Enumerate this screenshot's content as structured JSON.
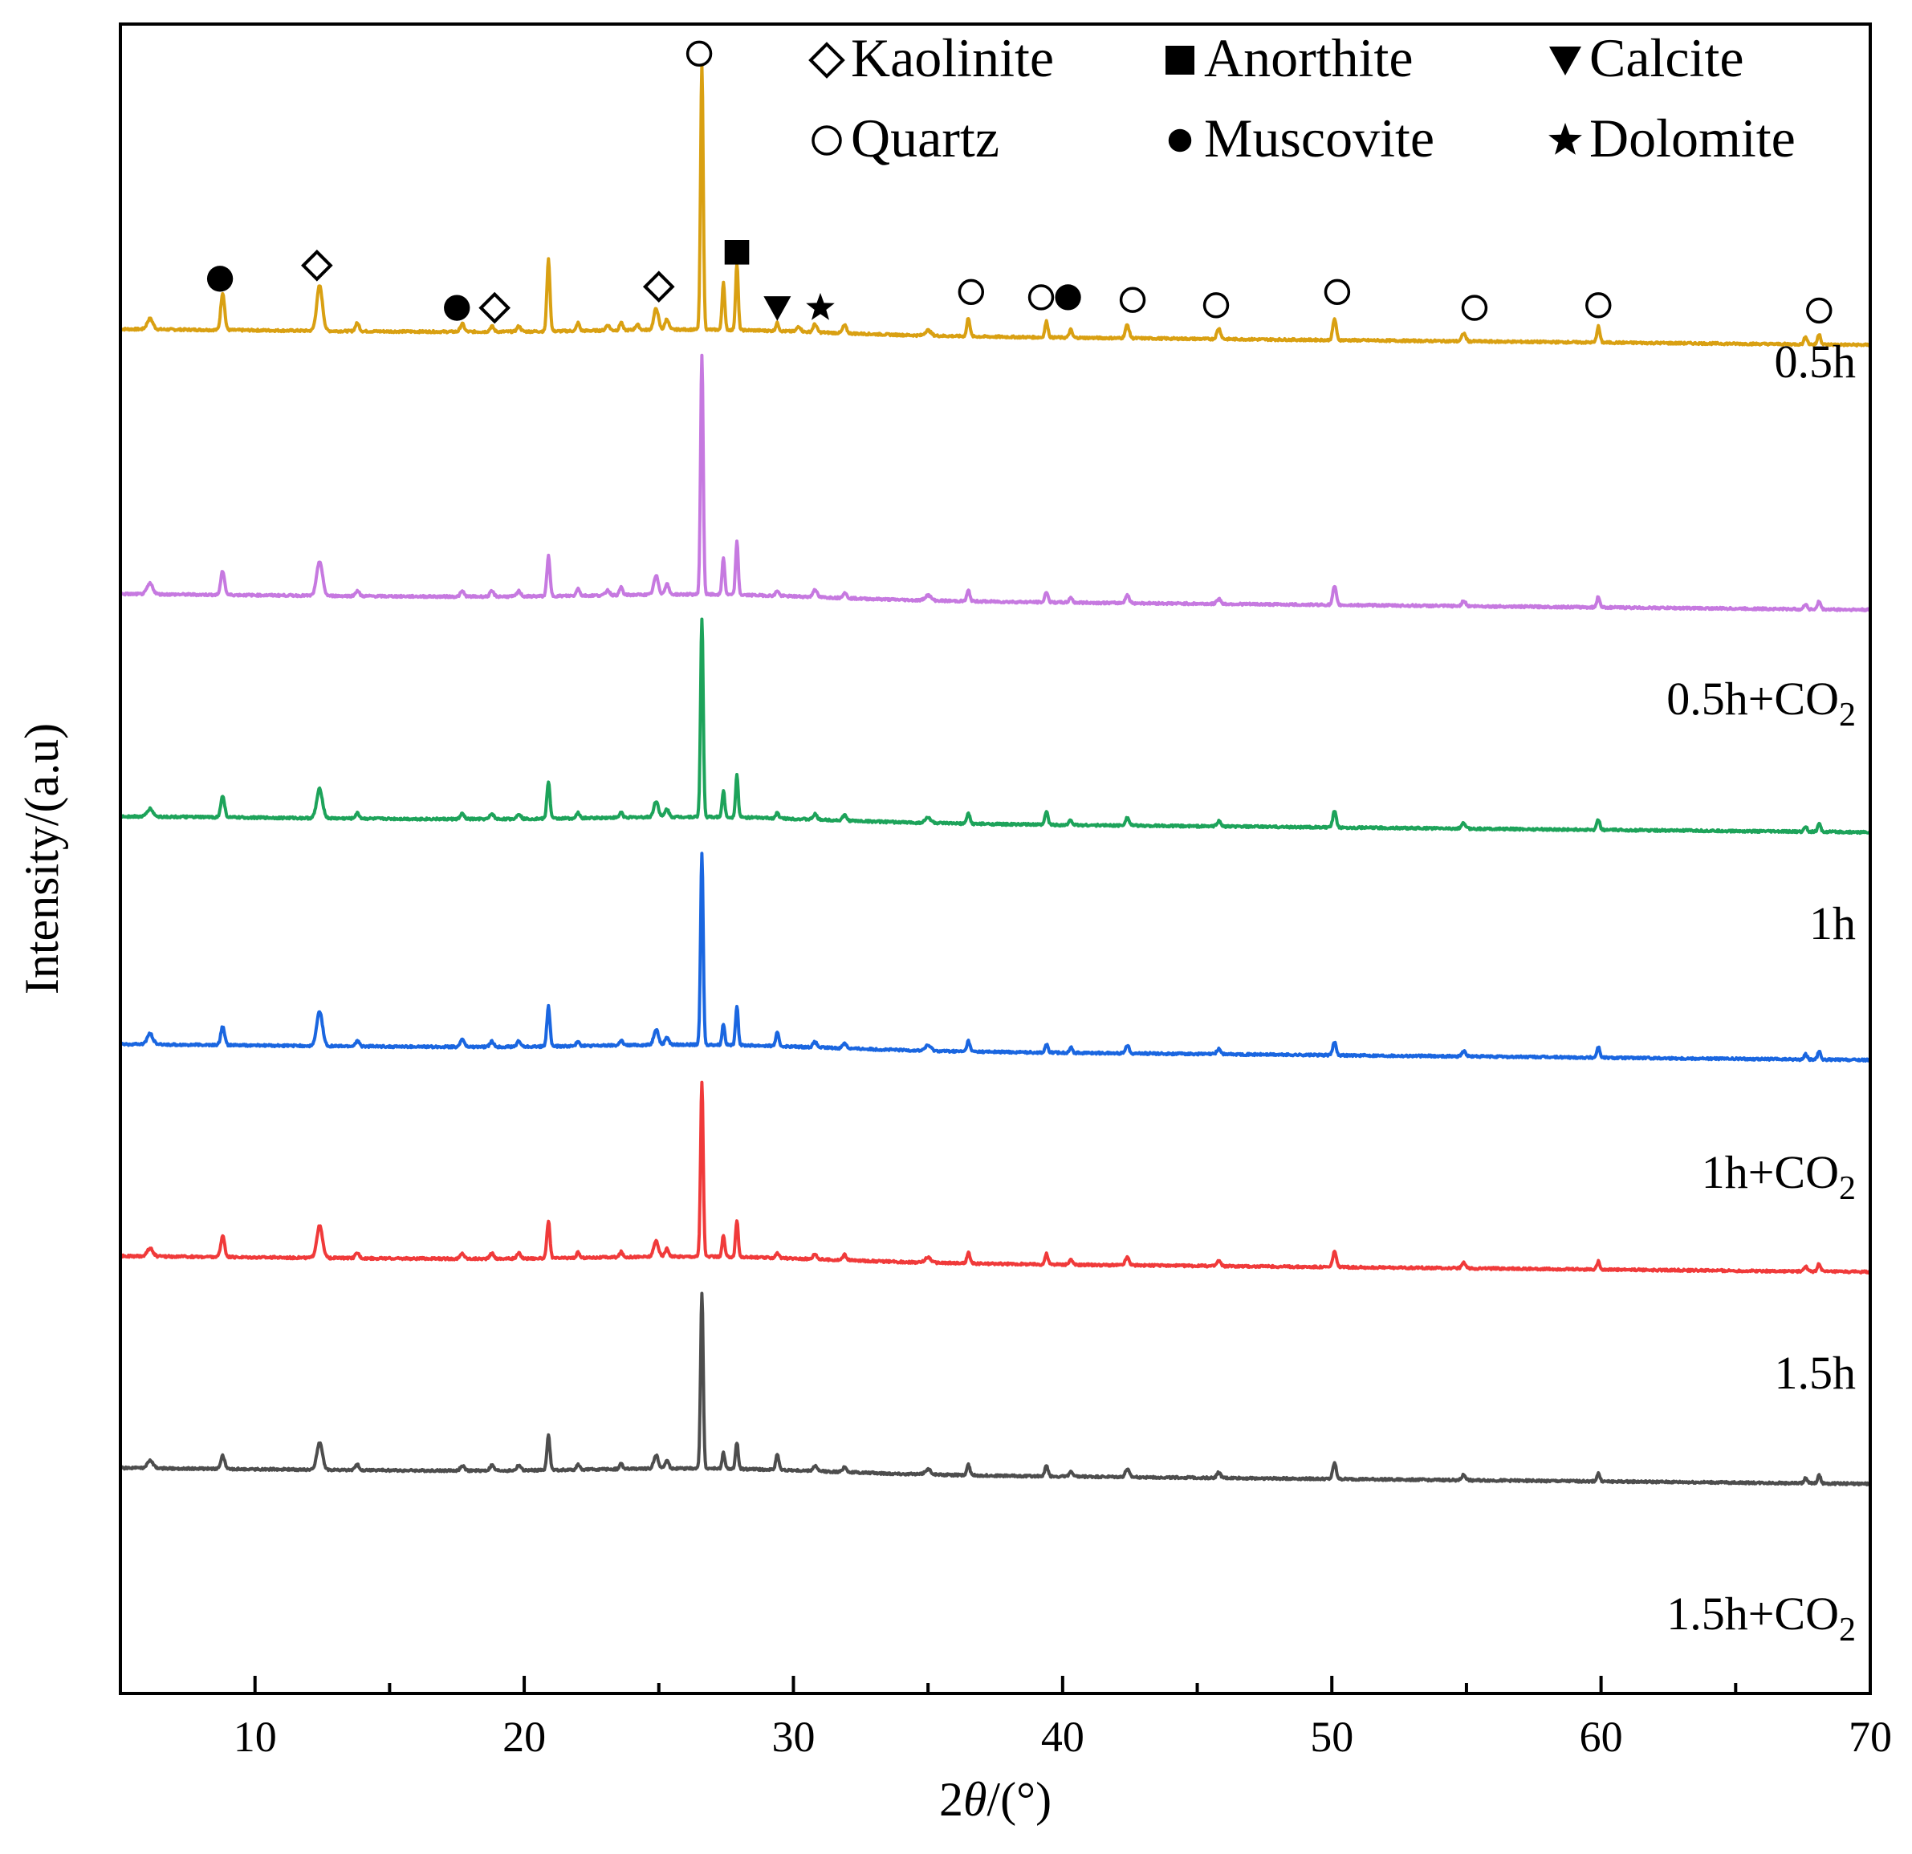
{
  "chart_data": {
    "type": "line",
    "title": "",
    "xlabel_prefix": "2",
    "xlabel_theta": "θ",
    "xlabel_suffix": "/(°)",
    "ylabel": "Intensity/(a.u)",
    "xlim": [
      5,
      70
    ],
    "xticks": [
      10,
      20,
      30,
      40,
      50,
      60,
      70
    ],
    "grid": false,
    "legend_position": "top-right",
    "legend": [
      {
        "symbol": "diamond-open",
        "name": "Kaolinite"
      },
      {
        "symbol": "square-filled",
        "name": "Anorthite"
      },
      {
        "symbol": "triangle-down-filled",
        "name": "Calcite"
      },
      {
        "symbol": "circle-open",
        "name": "Quartz"
      },
      {
        "symbol": "circle-filled",
        "name": "Muscovite"
      },
      {
        "symbol": "star-filled",
        "name": "Dolomite"
      }
    ],
    "series": [
      {
        "name": "0.5h",
        "label_main": "0.5h",
        "label_sub": "",
        "color": "#D9A012",
        "baseline_left": 0.0,
        "baseline_right": -0.06,
        "scale": 1.0,
        "peaks": [
          [
            6.1,
            0.04,
            0.15
          ],
          [
            8.8,
            0.14,
            0.1
          ],
          [
            12.4,
            0.17,
            0.15
          ],
          [
            13.8,
            0.03,
            0.1
          ],
          [
            17.7,
            0.03,
            0.1
          ],
          [
            18.8,
            0.02,
            0.1
          ],
          [
            19.8,
            0.02,
            0.1
          ],
          [
            20.9,
            0.27,
            0.08
          ],
          [
            22.0,
            0.03,
            0.08
          ],
          [
            23.1,
            0.02,
            0.1
          ],
          [
            23.6,
            0.03,
            0.08
          ],
          [
            24.2,
            0.02,
            0.1
          ],
          [
            24.9,
            0.08,
            0.12
          ],
          [
            25.3,
            0.04,
            0.1
          ],
          [
            26.6,
            1.0,
            0.07
          ],
          [
            27.4,
            0.18,
            0.07
          ],
          [
            27.9,
            0.25,
            0.07
          ],
          [
            29.4,
            0.03,
            0.08
          ],
          [
            30.2,
            0.02,
            0.1
          ],
          [
            30.8,
            0.03,
            0.1
          ],
          [
            31.9,
            0.03,
            0.1
          ],
          [
            35.0,
            0.02,
            0.15
          ],
          [
            36.5,
            0.07,
            0.08
          ],
          [
            39.4,
            0.06,
            0.08
          ],
          [
            40.3,
            0.03,
            0.08
          ],
          [
            42.4,
            0.05,
            0.1
          ],
          [
            45.8,
            0.04,
            0.1
          ],
          [
            50.1,
            0.08,
            0.09
          ],
          [
            54.9,
            0.03,
            0.1
          ],
          [
            59.9,
            0.06,
            0.08
          ],
          [
            67.6,
            0.03,
            0.08
          ],
          [
            68.1,
            0.04,
            0.08
          ]
        ]
      },
      {
        "name": "0.5h+CO2",
        "label_main": "0.5h+CO",
        "label_sub": "2",
        "color": "#C679E0",
        "baseline_left": -1.0,
        "baseline_right": -1.06,
        "scale": 1.0,
        "peaks": [
          [
            6.1,
            0.04,
            0.15
          ],
          [
            8.8,
            0.09,
            0.1
          ],
          [
            12.4,
            0.13,
            0.15
          ],
          [
            13.8,
            0.02,
            0.1
          ],
          [
            17.7,
            0.02,
            0.1
          ],
          [
            18.8,
            0.02,
            0.1
          ],
          [
            19.8,
            0.02,
            0.1
          ],
          [
            20.9,
            0.15,
            0.08
          ],
          [
            22.0,
            0.03,
            0.08
          ],
          [
            23.1,
            0.02,
            0.1
          ],
          [
            23.6,
            0.03,
            0.08
          ],
          [
            24.9,
            0.07,
            0.12
          ],
          [
            25.3,
            0.04,
            0.1
          ],
          [
            26.6,
            0.9,
            0.07
          ],
          [
            27.4,
            0.14,
            0.07
          ],
          [
            27.9,
            0.2,
            0.07
          ],
          [
            29.4,
            0.02,
            0.08
          ],
          [
            30.8,
            0.03,
            0.1
          ],
          [
            31.9,
            0.02,
            0.1
          ],
          [
            35.0,
            0.02,
            0.15
          ],
          [
            36.5,
            0.04,
            0.08
          ],
          [
            39.4,
            0.04,
            0.08
          ],
          [
            40.3,
            0.02,
            0.08
          ],
          [
            42.4,
            0.03,
            0.1
          ],
          [
            45.8,
            0.02,
            0.1
          ],
          [
            50.1,
            0.07,
            0.09
          ],
          [
            54.9,
            0.02,
            0.1
          ],
          [
            59.9,
            0.04,
            0.08
          ],
          [
            67.6,
            0.02,
            0.08
          ],
          [
            68.1,
            0.03,
            0.08
          ]
        ]
      },
      {
        "name": "1h",
        "label_main": "1h",
        "label_sub": "",
        "color": "#1DA35A",
        "baseline_left": -1.84,
        "baseline_right": -1.9,
        "scale": 1.0,
        "peaks": [
          [
            6.1,
            0.03,
            0.15
          ],
          [
            8.8,
            0.08,
            0.1
          ],
          [
            12.4,
            0.11,
            0.15
          ],
          [
            13.8,
            0.02,
            0.1
          ],
          [
            17.7,
            0.02,
            0.1
          ],
          [
            18.8,
            0.02,
            0.1
          ],
          [
            19.8,
            0.02,
            0.1
          ],
          [
            20.9,
            0.14,
            0.08
          ],
          [
            22.0,
            0.02,
            0.08
          ],
          [
            23.6,
            0.02,
            0.08
          ],
          [
            24.9,
            0.06,
            0.12
          ],
          [
            25.3,
            0.03,
            0.1
          ],
          [
            26.6,
            0.75,
            0.07
          ],
          [
            27.4,
            0.1,
            0.07
          ],
          [
            27.9,
            0.16,
            0.07
          ],
          [
            29.4,
            0.02,
            0.08
          ],
          [
            30.8,
            0.02,
            0.1
          ],
          [
            31.9,
            0.02,
            0.1
          ],
          [
            35.0,
            0.02,
            0.15
          ],
          [
            36.5,
            0.04,
            0.08
          ],
          [
            39.4,
            0.05,
            0.08
          ],
          [
            40.3,
            0.02,
            0.08
          ],
          [
            42.4,
            0.03,
            0.1
          ],
          [
            45.8,
            0.02,
            0.1
          ],
          [
            50.1,
            0.06,
            0.09
          ],
          [
            54.9,
            0.02,
            0.1
          ],
          [
            59.9,
            0.04,
            0.08
          ],
          [
            67.6,
            0.02,
            0.08
          ],
          [
            68.1,
            0.03,
            0.08
          ]
        ]
      },
      {
        "name": "1h+CO2",
        "label_main": "1h+CO",
        "label_sub": "2",
        "color": "#1A66E0",
        "baseline_left": -2.7,
        "baseline_right": -2.76,
        "scale": 1.0,
        "peaks": [
          [
            6.1,
            0.04,
            0.15
          ],
          [
            8.8,
            0.07,
            0.1
          ],
          [
            12.4,
            0.13,
            0.15
          ],
          [
            13.8,
            0.02,
            0.1
          ],
          [
            17.7,
            0.03,
            0.1
          ],
          [
            18.8,
            0.02,
            0.1
          ],
          [
            19.8,
            0.02,
            0.1
          ],
          [
            20.9,
            0.15,
            0.08
          ],
          [
            22.0,
            0.02,
            0.08
          ],
          [
            23.6,
            0.02,
            0.08
          ],
          [
            24.9,
            0.06,
            0.12
          ],
          [
            25.3,
            0.03,
            0.1
          ],
          [
            26.6,
            0.72,
            0.07
          ],
          [
            27.4,
            0.08,
            0.07
          ],
          [
            27.9,
            0.15,
            0.07
          ],
          [
            29.4,
            0.05,
            0.08
          ],
          [
            30.8,
            0.02,
            0.1
          ],
          [
            31.9,
            0.02,
            0.1
          ],
          [
            35.0,
            0.02,
            0.15
          ],
          [
            36.5,
            0.04,
            0.08
          ],
          [
            39.4,
            0.03,
            0.08
          ],
          [
            40.3,
            0.02,
            0.08
          ],
          [
            42.4,
            0.03,
            0.1
          ],
          [
            45.8,
            0.02,
            0.1
          ],
          [
            50.1,
            0.05,
            0.09
          ],
          [
            54.9,
            0.02,
            0.1
          ],
          [
            59.9,
            0.04,
            0.08
          ],
          [
            67.6,
            0.02,
            0.08
          ],
          [
            68.1,
            0.03,
            0.08
          ]
        ]
      },
      {
        "name": "1.5h",
        "label_main": "1.5h",
        "label_sub": "",
        "color": "#F03A3A",
        "baseline_left": -3.5,
        "baseline_right": -3.56,
        "scale": 1.0,
        "peaks": [
          [
            6.1,
            0.03,
            0.15
          ],
          [
            8.8,
            0.08,
            0.1
          ],
          [
            12.4,
            0.12,
            0.15
          ],
          [
            13.8,
            0.02,
            0.1
          ],
          [
            17.7,
            0.02,
            0.1
          ],
          [
            18.8,
            0.02,
            0.1
          ],
          [
            19.8,
            0.02,
            0.1
          ],
          [
            20.9,
            0.14,
            0.08
          ],
          [
            22.0,
            0.02,
            0.08
          ],
          [
            23.6,
            0.02,
            0.08
          ],
          [
            24.9,
            0.06,
            0.12
          ],
          [
            25.3,
            0.03,
            0.1
          ],
          [
            26.6,
            0.66,
            0.07
          ],
          [
            27.4,
            0.08,
            0.07
          ],
          [
            27.9,
            0.14,
            0.07
          ],
          [
            29.4,
            0.02,
            0.08
          ],
          [
            30.8,
            0.02,
            0.1
          ],
          [
            31.9,
            0.02,
            0.1
          ],
          [
            35.0,
            0.02,
            0.15
          ],
          [
            36.5,
            0.04,
            0.08
          ],
          [
            39.4,
            0.04,
            0.08
          ],
          [
            40.3,
            0.02,
            0.08
          ],
          [
            42.4,
            0.03,
            0.1
          ],
          [
            45.8,
            0.02,
            0.1
          ],
          [
            50.1,
            0.06,
            0.09
          ],
          [
            54.9,
            0.02,
            0.1
          ],
          [
            59.9,
            0.03,
            0.08
          ],
          [
            67.6,
            0.02,
            0.08
          ],
          [
            68.1,
            0.03,
            0.08
          ]
        ]
      },
      {
        "name": "1.5h+CO2",
        "label_main": "1.5h+CO",
        "label_sub": "2",
        "color": "#4D4D4D",
        "baseline_left": -4.3,
        "baseline_right": -4.36,
        "scale": 1.0,
        "peaks": [
          [
            6.1,
            0.03,
            0.15
          ],
          [
            8.8,
            0.05,
            0.1
          ],
          [
            12.4,
            0.1,
            0.15
          ],
          [
            13.8,
            0.02,
            0.1
          ],
          [
            17.7,
            0.02,
            0.1
          ],
          [
            18.8,
            0.02,
            0.1
          ],
          [
            19.8,
            0.02,
            0.1
          ],
          [
            20.9,
            0.13,
            0.08
          ],
          [
            22.0,
            0.02,
            0.08
          ],
          [
            23.6,
            0.02,
            0.08
          ],
          [
            24.9,
            0.05,
            0.12
          ],
          [
            25.3,
            0.03,
            0.1
          ],
          [
            26.6,
            0.66,
            0.07
          ],
          [
            27.4,
            0.06,
            0.07
          ],
          [
            27.9,
            0.1,
            0.07
          ],
          [
            29.4,
            0.06,
            0.08
          ],
          [
            30.8,
            0.02,
            0.1
          ],
          [
            31.9,
            0.02,
            0.1
          ],
          [
            35.0,
            0.02,
            0.15
          ],
          [
            36.5,
            0.04,
            0.08
          ],
          [
            39.4,
            0.04,
            0.08
          ],
          [
            40.3,
            0.02,
            0.08
          ],
          [
            42.4,
            0.03,
            0.1
          ],
          [
            45.8,
            0.02,
            0.1
          ],
          [
            50.1,
            0.06,
            0.09
          ],
          [
            54.9,
            0.02,
            0.1
          ],
          [
            59.9,
            0.03,
            0.08
          ],
          [
            67.6,
            0.02,
            0.08
          ],
          [
            68.1,
            0.03,
            0.08
          ]
        ]
      }
    ],
    "annotations": [
      {
        "symbol": "circle-filled",
        "x": 8.7,
        "y": 0.19
      },
      {
        "symbol": "diamond-open",
        "x": 12.3,
        "y": 0.24
      },
      {
        "symbol": "circle-filled",
        "x": 17.5,
        "y": 0.08
      },
      {
        "symbol": "diamond-open",
        "x": 18.9,
        "y": 0.08
      },
      {
        "symbol": "diamond-open",
        "x": 25.0,
        "y": 0.16
      },
      {
        "symbol": "circle-open",
        "x": 26.5,
        "y": 1.04
      },
      {
        "symbol": "square-filled",
        "x": 27.9,
        "y": 0.29
      },
      {
        "symbol": "triangle-down-filled",
        "x": 29.4,
        "y": 0.08
      },
      {
        "symbol": "star-filled",
        "x": 31.0,
        "y": 0.08
      },
      {
        "symbol": "circle-open",
        "x": 36.6,
        "y": 0.14
      },
      {
        "symbol": "circle-open",
        "x": 39.2,
        "y": 0.12
      },
      {
        "symbol": "circle-filled",
        "x": 40.2,
        "y": 0.12
      },
      {
        "symbol": "circle-open",
        "x": 42.6,
        "y": 0.11
      },
      {
        "symbol": "circle-open",
        "x": 45.7,
        "y": 0.09
      },
      {
        "symbol": "circle-open",
        "x": 50.2,
        "y": 0.14
      },
      {
        "symbol": "circle-open",
        "x": 55.3,
        "y": 0.08
      },
      {
        "symbol": "circle-open",
        "x": 59.9,
        "y": 0.09
      },
      {
        "symbol": "circle-open",
        "x": 68.1,
        "y": 0.07
      }
    ]
  }
}
